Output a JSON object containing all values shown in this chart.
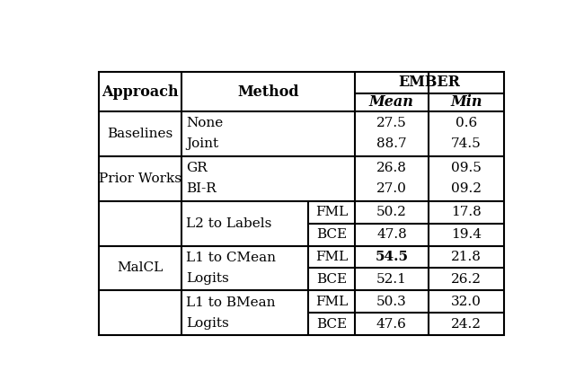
{
  "figsize": [
    6.4,
    4.23
  ],
  "dpi": 100,
  "header": {
    "approach": "Approach",
    "method": "Method",
    "ember": "EMBER",
    "mean": "Mean",
    "min": "Min"
  },
  "font_family": "DejaVu Serif",
  "header_fontsize": 11.5,
  "cell_fontsize": 11,
  "line_color": "black",
  "line_width": 1.5,
  "background_color": "white",
  "L": 0.06,
  "R": 0.97,
  "T": 0.91,
  "B": 0.01
}
